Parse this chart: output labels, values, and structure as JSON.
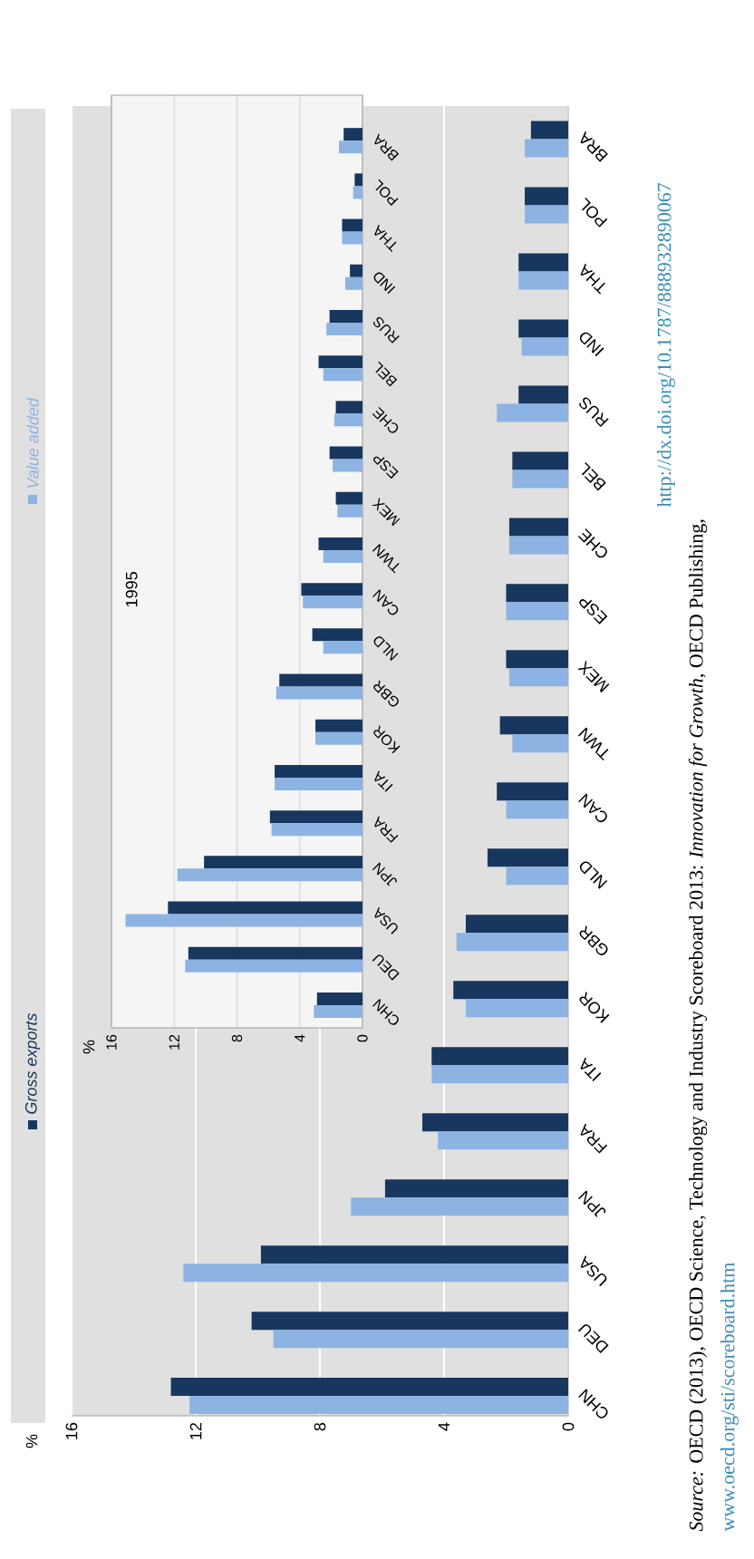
{
  "chart_data": [
    {
      "type": "bar",
      "orientation": "horizontal",
      "categories": [
        "BRA",
        "POL",
        "THA",
        "IND",
        "RUS",
        "BEL",
        "CHE",
        "ESP",
        "MEX",
        "TWN",
        "CAN",
        "NLD",
        "GBR",
        "KOR",
        "ITA",
        "FRA",
        "JPN",
        "USA",
        "DEU",
        "CHN"
      ],
      "series": [
        {
          "name": "Gross exports",
          "color": "#17375e",
          "values": [
            1.2,
            1.4,
            1.6,
            1.6,
            1.6,
            1.8,
            1.9,
            2.0,
            2.0,
            2.2,
            2.3,
            2.6,
            3.3,
            3.7,
            4.4,
            4.7,
            5.9,
            9.9,
            10.2,
            12.8
          ]
        },
        {
          "name": "Value added",
          "color": "#8db3e2",
          "values": [
            1.4,
            1.4,
            1.6,
            1.5,
            2.3,
            1.8,
            1.9,
            2.0,
            1.9,
            1.8,
            2.0,
            2.0,
            3.6,
            3.3,
            4.4,
            4.2,
            7.0,
            12.4,
            9.5,
            12.2
          ]
        }
      ],
      "xlim": [
        16,
        0
      ],
      "xticks": [
        16,
        12,
        8,
        4,
        0
      ],
      "grid": "x",
      "legend": "left",
      "annotations": [
        "*Source:* OECD (2013), OECD Science, Technology and Industry Scoreboard 2013: *Innovation for Growth*, OECD Publishing,",
        "www.oecd.org/sti/scoreboard.htm",
        "http://dx.doi.org/10.1787/888932890067",
        "%"
      ]
    },
    {
      "type": "bar",
      "orientation": "horizontal",
      "title": "1995",
      "annotations": [
        "%"
      ],
      "categories": [
        "BRA",
        "POL",
        "THA",
        "IND",
        "RUS",
        "BEL",
        "CHE",
        "ESP",
        "MEX",
        "TWN",
        "CAN",
        "NLD",
        "GBR",
        "KOR",
        "ITA",
        "FRA",
        "JPN",
        "USA",
        "DEU",
        "CHN"
      ],
      "series": [
        {
          "color": "#17375e",
          "values": [
            1.2,
            0.5,
            1.3,
            0.8,
            2.1,
            2.8,
            1.7,
            2.1,
            1.7,
            2.8,
            3.9,
            3.2,
            5.3,
            3.0,
            5.6,
            5.9,
            10.1,
            12.4,
            11.1,
            2.9
          ]
        },
        {
          "color": "#8db3e2",
          "values": [
            1.5,
            0.6,
            1.3,
            1.1,
            2.3,
            2.5,
            1.8,
            1.9,
            1.6,
            2.5,
            3.8,
            2.5,
            5.5,
            3.0,
            5.6,
            5.8,
            11.8,
            15.1,
            11.3,
            3.1
          ]
        }
      ],
      "xlim": [
        16,
        0
      ],
      "xticks": [
        16,
        12,
        8,
        4,
        0
      ],
      "grid": "x"
    }
  ]
}
